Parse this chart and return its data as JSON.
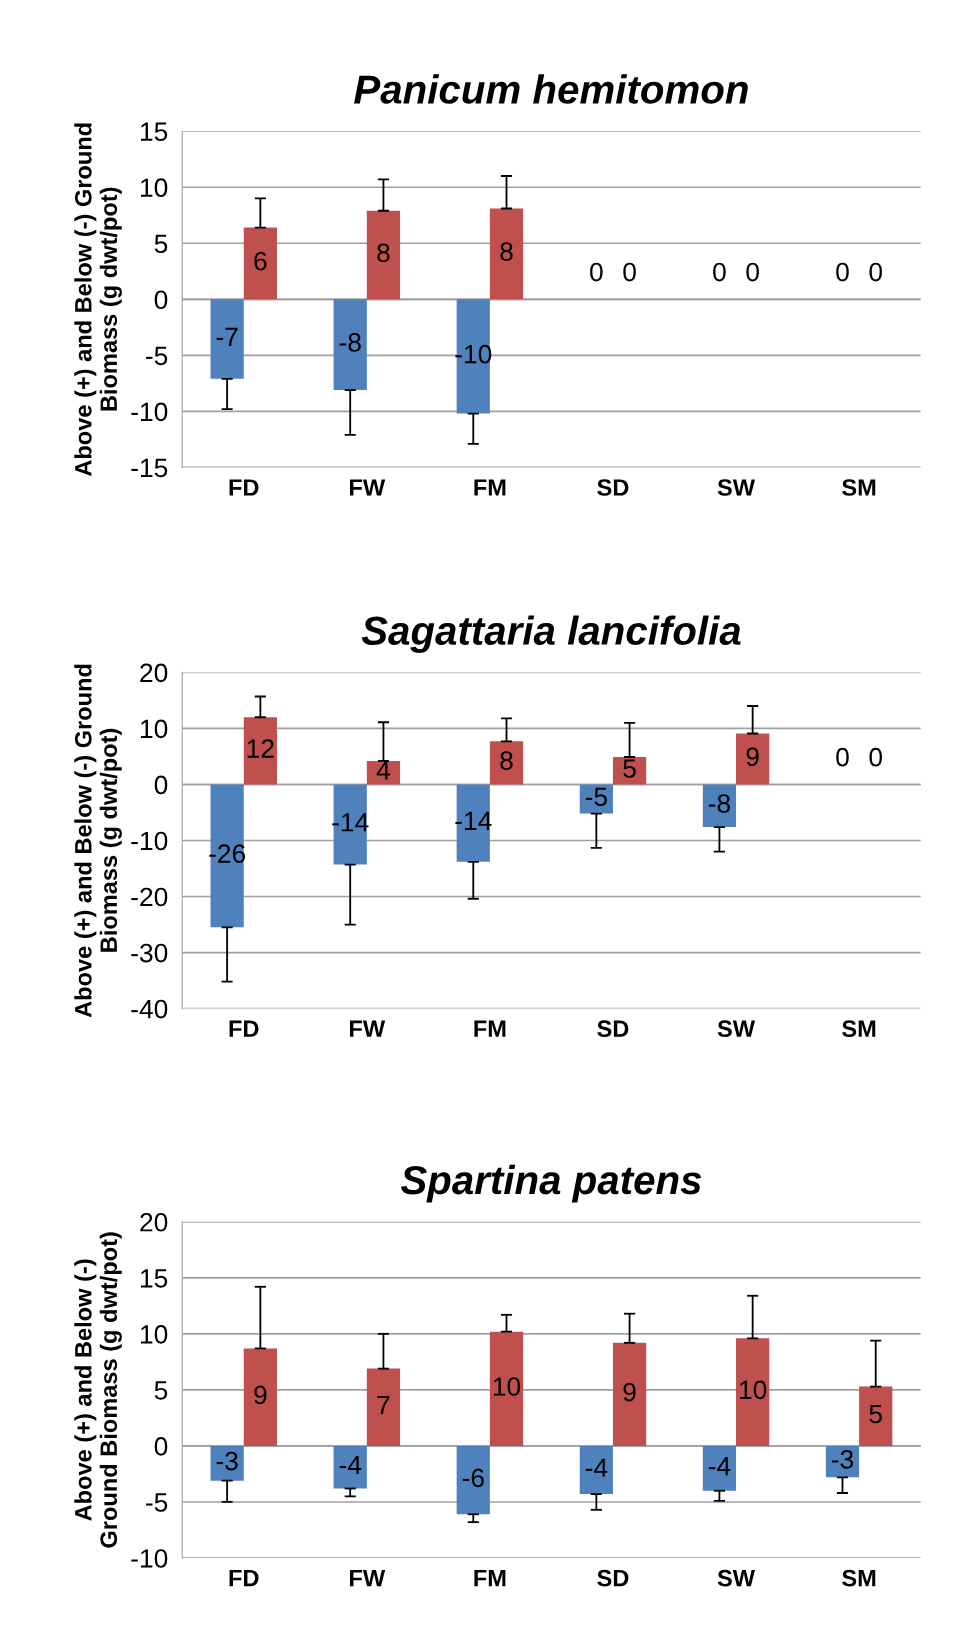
{
  "chart_data": [
    {
      "type": "bar",
      "title": "Panicum hemitomon",
      "ylabel": "Above (+) and Below (-) Ground\nBiomass (g dwt/pot)",
      "categories": [
        "FD",
        "FW",
        "FM",
        "SD",
        "SW",
        "SM"
      ],
      "ylim": [
        -15,
        15
      ],
      "yticks": [
        -15,
        -10,
        -5,
        0,
        5,
        10,
        15
      ],
      "grid": "y",
      "legend": false,
      "series": [
        {
          "color": "#4f81bd",
          "values": [
            -7.1,
            -8.1,
            -10.2,
            0,
            0,
            0
          ],
          "errors": [
            [
              -9.8,
              -7.1
            ],
            [
              -12.1,
              -8.1
            ],
            [
              -12.9,
              -10.2
            ],
            null,
            null,
            null
          ],
          "value_labels": [
            "-7",
            "-8",
            "-10",
            "0",
            "0",
            "0"
          ]
        },
        {
          "color": "#c0504d",
          "values": [
            6.4,
            7.9,
            8.1,
            0,
            0,
            0
          ],
          "errors": [
            [
              6.4,
              9.0
            ],
            [
              7.9,
              10.7
            ],
            [
              8.1,
              11.0
            ],
            null,
            null,
            null
          ],
          "value_labels": [
            "6",
            "8",
            "8",
            "0",
            "0",
            "0"
          ]
        }
      ]
    },
    {
      "type": "bar",
      "title": "Sagattaria lancifolia",
      "ylabel": "Above (+) and Below (-) Ground\nBiomass (g dwt/pot)",
      "categories": [
        "FD",
        "FW",
        "FM",
        "SD",
        "SW",
        "SM"
      ],
      "ylim": [
        -40,
        20
      ],
      "yticks": [
        -40,
        -30,
        -20,
        -10,
        0,
        10,
        20
      ],
      "grid": "y",
      "legend": false,
      "series": [
        {
          "color": "#4f81bd",
          "values": [
            -25.5,
            -14.3,
            -13.8,
            -5.2,
            -7.6,
            0
          ],
          "errors": [
            [
              -35.2,
              -25.5
            ],
            [
              -25.0,
              -14.3
            ],
            [
              -20.4,
              -13.8
            ],
            [
              -11.3,
              -5.2
            ],
            [
              -12.0,
              -7.6
            ],
            null
          ],
          "value_labels": [
            "-26",
            "-14",
            "-14",
            "-5",
            "-8",
            "0"
          ]
        },
        {
          "color": "#c0504d",
          "values": [
            12.0,
            4.2,
            7.7,
            4.9,
            9.1,
            0
          ],
          "errors": [
            [
              12.0,
              15.7
            ],
            [
              4.2,
              11.1
            ],
            [
              7.7,
              11.8
            ],
            [
              4.9,
              11.0
            ],
            [
              9.1,
              14.0
            ],
            null
          ],
          "value_labels": [
            "12",
            "4",
            "8",
            "5",
            "9",
            "0"
          ]
        }
      ]
    },
    {
      "type": "bar",
      "title": "Spartina patens",
      "ylabel": "Above (+) and Below (-)\nGround Biomass (g dwt/pot)",
      "categories": [
        "FD",
        "FW",
        "FM",
        "SD",
        "SW",
        "SM"
      ],
      "ylim": [
        -10,
        20
      ],
      "yticks": [
        -10,
        -5,
        0,
        5,
        10,
        15,
        20
      ],
      "grid": "y",
      "legend": false,
      "series": [
        {
          "color": "#4f81bd",
          "values": [
            -3.1,
            -3.8,
            -6.1,
            -4.3,
            -4.0,
            -2.8
          ],
          "errors": [
            [
              -5.0,
              -3.1
            ],
            [
              -4.5,
              -3.8
            ],
            [
              -6.8,
              -6.1
            ],
            [
              -5.7,
              -4.3
            ],
            [
              -4.9,
              -4.0
            ],
            [
              -4.2,
              -2.8
            ]
          ],
          "value_labels": [
            "-3",
            "-4",
            "-6",
            "-4",
            "-4",
            "-3"
          ]
        },
        {
          "color": "#c0504d",
          "values": [
            8.7,
            6.9,
            10.2,
            9.2,
            9.6,
            5.3
          ],
          "errors": [
            [
              8.7,
              14.2
            ],
            [
              6.9,
              10.0
            ],
            [
              10.2,
              11.7
            ],
            [
              9.2,
              11.8
            ],
            [
              9.6,
              13.4
            ],
            [
              5.3,
              9.4
            ]
          ],
          "value_labels": [
            "9",
            "7",
            "10",
            "9",
            "10",
            "5"
          ]
        }
      ]
    }
  ]
}
